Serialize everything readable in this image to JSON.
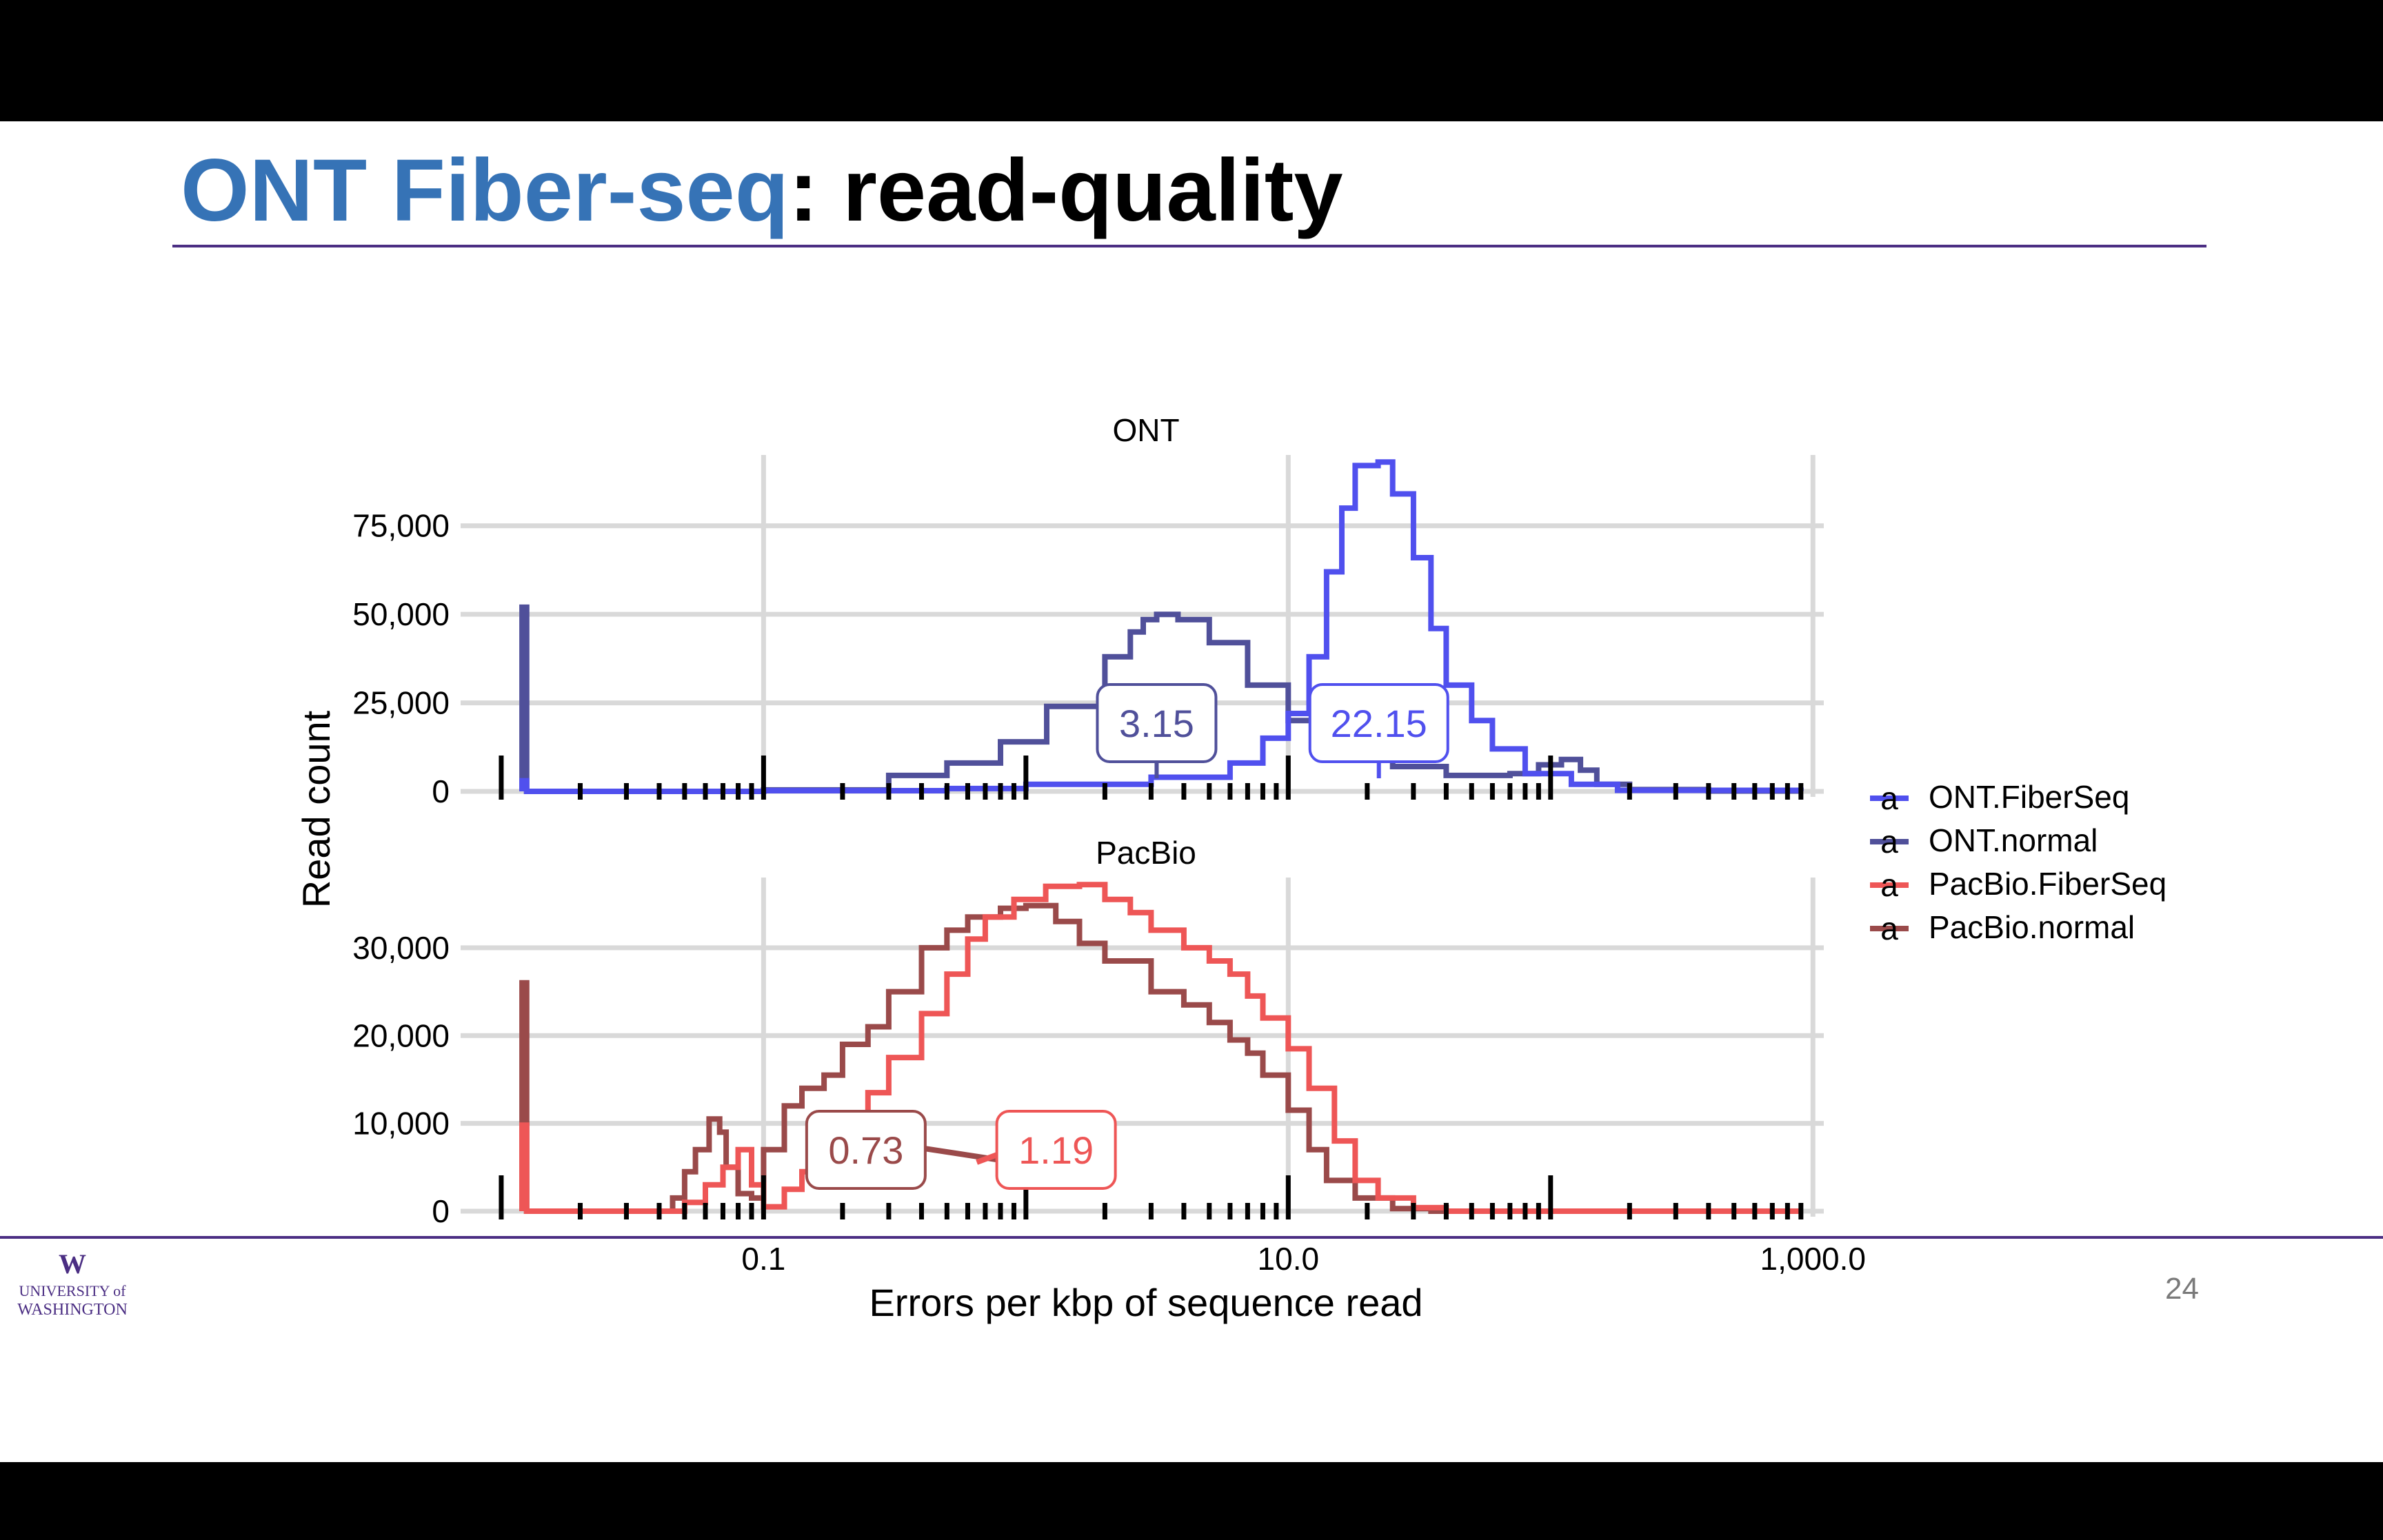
{
  "slide": {
    "title_highlight": "ONT Fiber-seq",
    "title_rest": ": read-quality",
    "page_number": "24",
    "logo": {
      "letter": "W",
      "line1": "UNIVERSITY of",
      "line2": "WASHINGTON"
    }
  },
  "colors": {
    "title_blue": "#3673b6",
    "rule_purple": "#4b2e83",
    "ONT.FiberSeq": "#5050ee",
    "ONT.normal": "#50509a",
    "PacBio.FiberSeq": "#ee5656",
    "PacBio.normal": "#9a4a4a"
  },
  "chart_data": {
    "type": "histogram (step, facetted)",
    "xlabel": "Errors per kbp of sequence read",
    "ylabel": "Read count",
    "x_scale": "log10",
    "x_ticks": [
      "0.1",
      "10.0",
      "1,000.0"
    ],
    "x_range": [
      0.007,
      1100
    ],
    "legend": {
      "position": "right",
      "entries": [
        {
          "key": "ONT.FiberSeq",
          "glyph": "a"
        },
        {
          "key": "ONT.normal",
          "glyph": "a"
        },
        {
          "key": "PacBio.FiberSeq",
          "glyph": "a"
        },
        {
          "key": "PacBio.normal",
          "glyph": "a"
        }
      ]
    },
    "rug": "marks along x axis in each panel",
    "panels": [
      {
        "strip": "ONT",
        "y_ticks": [
          "0",
          "25,000",
          "50,000",
          "75,000"
        ],
        "y_tick_values": [
          0,
          25000,
          50000,
          75000
        ],
        "ylim": [
          0,
          95000
        ],
        "series": [
          {
            "name": "ONT.normal",
            "points": [
              [
                0.012,
                52000
              ],
              [
                0.0125,
                0
              ],
              [
                0.1,
                400
              ],
              [
                0.3,
                4500
              ],
              [
                0.5,
                8000
              ],
              [
                0.8,
                14000
              ],
              [
                1.2,
                24000
              ],
              [
                2.0,
                38000
              ],
              [
                2.5,
                45000
              ],
              [
                2.8,
                48500
              ],
              [
                3.15,
                50000
              ],
              [
                3.8,
                48500
              ],
              [
                5,
                42000
              ],
              [
                7,
                30000
              ],
              [
                10,
                20000
              ],
              [
                15,
                12000
              ],
              [
                25,
                7000
              ],
              [
                40,
                4500
              ],
              [
                70,
                5000
              ],
              [
                90,
                7500
              ],
              [
                110,
                9000
              ],
              [
                130,
                6000
              ],
              [
                150,
                2000
              ],
              [
                200,
                500
              ],
              [
                400,
                100
              ],
              [
                900,
                100
              ]
            ]
          },
          {
            "name": "ONT.FiberSeq",
            "points": [
              [
                0.012,
                3000
              ],
              [
                0.0125,
                0
              ],
              [
                0.1,
                200
              ],
              [
                0.5,
                800
              ],
              [
                1,
                2000
              ],
              [
                3,
                4000
              ],
              [
                6,
                8000
              ],
              [
                8,
                15000
              ],
              [
                10,
                22000
              ],
              [
                12,
                38000
              ],
              [
                14,
                62000
              ],
              [
                16,
                80000
              ],
              [
                18,
                92000
              ],
              [
                22,
                93000
              ],
              [
                25,
                84000
              ],
              [
                30,
                66000
              ],
              [
                35,
                46000
              ],
              [
                40,
                30000
              ],
              [
                50,
                20000
              ],
              [
                60,
                12000
              ],
              [
                80,
                5000
              ],
              [
                120,
                2000
              ],
              [
                180,
                300
              ],
              [
                900,
                100
              ]
            ]
          }
        ],
        "labels": [
          {
            "series": "ONT.normal",
            "text": "3.15",
            "x": 3.15
          },
          {
            "series": "ONT.FiberSeq",
            "text": "22.15",
            "x": 22.15
          }
        ]
      },
      {
        "strip": "PacBio",
        "y_ticks": [
          "0",
          "10,000",
          "20,000",
          "30,000"
        ],
        "y_tick_values": [
          0,
          10000,
          20000,
          30000
        ],
        "ylim": [
          0,
          38000
        ],
        "series": [
          {
            "name": "PacBio.normal",
            "points": [
              [
                0.012,
                26000
              ],
              [
                0.0125,
                0
              ],
              [
                0.04,
                0
              ],
              [
                0.045,
                1500
              ],
              [
                0.05,
                4500
              ],
              [
                0.055,
                7000
              ],
              [
                0.062,
                10500
              ],
              [
                0.068,
                9000
              ],
              [
                0.072,
                5000
              ],
              [
                0.08,
                2000
              ],
              [
                0.09,
                1500
              ],
              [
                0.1,
                7000
              ],
              [
                0.12,
                12000
              ],
              [
                0.14,
                14000
              ],
              [
                0.17,
                15500
              ],
              [
                0.2,
                19000
              ],
              [
                0.25,
                21000
              ],
              [
                0.3,
                25000
              ],
              [
                0.4,
                30000
              ],
              [
                0.5,
                32000
              ],
              [
                0.6,
                33500
              ],
              [
                0.8,
                34500
              ],
              [
                1.0,
                34800
              ],
              [
                1.3,
                33000
              ],
              [
                1.6,
                30500
              ],
              [
                2,
                28500
              ],
              [
                3,
                25000
              ],
              [
                4,
                23500
              ],
              [
                5,
                21500
              ],
              [
                6,
                19500
              ],
              [
                7,
                18000
              ],
              [
                8,
                15500
              ],
              [
                10,
                11500
              ],
              [
                12,
                7000
              ],
              [
                14,
                3500
              ],
              [
                18,
                1500
              ],
              [
                25,
                300
              ],
              [
                35,
                0
              ],
              [
                900,
                0
              ]
            ]
          },
          {
            "name": "PacBio.FiberSeq",
            "points": [
              [
                0.012,
                9800
              ],
              [
                0.0125,
                0
              ],
              [
                0.04,
                0
              ],
              [
                0.05,
                1000
              ],
              [
                0.06,
                3000
              ],
              [
                0.07,
                5000
              ],
              [
                0.08,
                7000
              ],
              [
                0.09,
                3000
              ],
              [
                0.1,
                500
              ],
              [
                0.12,
                2500
              ],
              [
                0.14,
                4500
              ],
              [
                0.17,
                8000
              ],
              [
                0.2,
                10500
              ],
              [
                0.25,
                13500
              ],
              [
                0.3,
                17500
              ],
              [
                0.4,
                22500
              ],
              [
                0.5,
                27000
              ],
              [
                0.6,
                31000
              ],
              [
                0.7,
                33500
              ],
              [
                0.9,
                35500
              ],
              [
                1.19,
                37000
              ],
              [
                1.6,
                37200
              ],
              [
                2,
                35500
              ],
              [
                2.5,
                34000
              ],
              [
                3,
                32000
              ],
              [
                4,
                30000
              ],
              [
                5,
                28500
              ],
              [
                6,
                27000
              ],
              [
                7,
                24500
              ],
              [
                8,
                22000
              ],
              [
                10,
                18500
              ],
              [
                12,
                14000
              ],
              [
                15,
                8000
              ],
              [
                18,
                3500
              ],
              [
                22,
                1500
              ],
              [
                30,
                400
              ],
              [
                40,
                0
              ],
              [
                900,
                0
              ]
            ]
          }
        ],
        "labels": [
          {
            "series": "PacBio.normal",
            "text": "0.73",
            "x": 0.73
          },
          {
            "series": "PacBio.FiberSeq",
            "text": "1.19",
            "x": 1.19
          }
        ]
      }
    ]
  }
}
